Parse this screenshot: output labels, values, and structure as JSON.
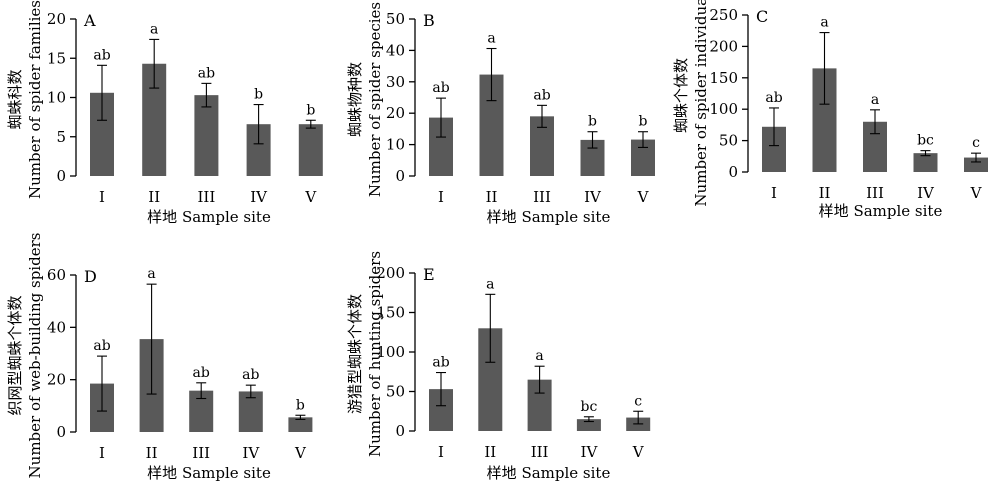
{
  "figure": {
    "background": "#ffffff",
    "bar_color": "#595959",
    "axis_color": "#000000"
  },
  "chart_data": [
    {
      "type": "bar",
      "panel_label": "A",
      "categories": [
        "I",
        "II",
        "III",
        "IV",
        "V"
      ],
      "values": [
        10.6,
        14.3,
        10.3,
        6.6,
        6.6
      ],
      "errors": [
        3.5,
        3.1,
        1.5,
        2.5,
        0.5
      ],
      "significance": [
        "ab",
        "a",
        "ab",
        "b",
        "b"
      ],
      "ylim": [
        0,
        20
      ],
      "yticks": [
        0,
        5,
        10,
        15,
        20
      ],
      "ylabel_cn": "蜘蛛科数",
      "ylabel_en": "Number of spider families",
      "xlabel": "样地 Sample site"
    },
    {
      "type": "bar",
      "panel_label": "B",
      "categories": [
        "I",
        "II",
        "III",
        "IV",
        "V"
      ],
      "values": [
        18.6,
        32.3,
        19.0,
        11.5,
        11.6
      ],
      "errors": [
        6.2,
        8.3,
        3.5,
        2.6,
        2.5
      ],
      "significance": [
        "ab",
        "a",
        "ab",
        "b",
        "b"
      ],
      "ylim": [
        0,
        50
      ],
      "yticks": [
        0,
        10,
        20,
        30,
        40,
        50
      ],
      "ylabel_cn": "蜘蛛物种数",
      "ylabel_en": "Number of spider species",
      "xlabel": "样地 Sample site"
    },
    {
      "type": "bar",
      "panel_label": "C",
      "categories": [
        "I",
        "II",
        "III",
        "IV",
        "V"
      ],
      "values": [
        72,
        165,
        80,
        30,
        23
      ],
      "errors": [
        30,
        57,
        19,
        4,
        7
      ],
      "significance": [
        "ab",
        "a",
        "a",
        "bc",
        "c"
      ],
      "ylim": [
        0,
        250
      ],
      "yticks": [
        0,
        50,
        100,
        150,
        200,
        250
      ],
      "ylabel_cn": "蜘蛛个体数",
      "ylabel_en": "Number of spider individuals",
      "xlabel": "样地 Sample site"
    },
    {
      "type": "bar",
      "panel_label": "D",
      "categories": [
        "I",
        "II",
        "III",
        "IV",
        "V"
      ],
      "values": [
        18.5,
        35.5,
        15.8,
        15.5,
        5.6
      ],
      "errors": [
        10.5,
        21.0,
        3.0,
        2.4,
        0.8
      ],
      "significance": [
        "ab",
        "a",
        "ab",
        "ab",
        "b"
      ],
      "ylim": [
        0,
        60
      ],
      "yticks": [
        0,
        20,
        40,
        60
      ],
      "ylabel_cn": "织网型蜘蛛个体数",
      "ylabel_en": "Number of web-building spiders",
      "xlabel": "样地 Sample site"
    },
    {
      "type": "bar",
      "panel_label": "E",
      "categories": [
        "I",
        "II",
        "III",
        "IV",
        "V"
      ],
      "values": [
        53,
        130,
        65,
        15,
        17
      ],
      "errors": [
        21,
        43,
        17,
        3,
        8
      ],
      "significance": [
        "ab",
        "a",
        "a",
        "bc",
        "c"
      ],
      "ylim": [
        0,
        200
      ],
      "yticks": [
        0,
        50,
        100,
        150,
        200
      ],
      "ylabel_cn": "游猎型蜘蛛个体数",
      "ylabel_en": "Number of hunting spiders",
      "xlabel": "样地 Sample site"
    }
  ]
}
